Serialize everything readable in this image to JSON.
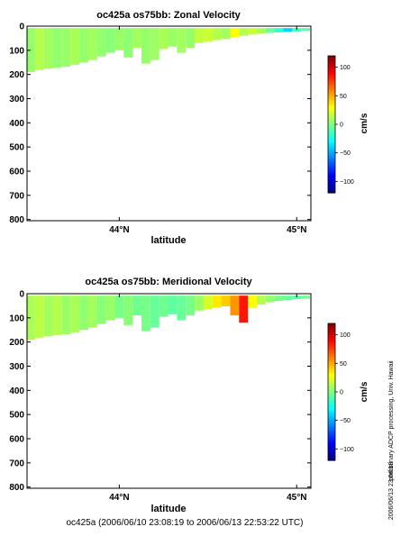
{
  "chart_data": [
    {
      "type": "heatmap",
      "title": "oc425a os75bb: Zonal Velocity",
      "xlabel": "latitude",
      "ylabel": "",
      "x_tick_labels": [
        "44°N",
        "45°N"
      ],
      "x_ticks": [
        44.0,
        45.0
      ],
      "xlim": [
        43.48,
        45.08
      ],
      "ylim": [
        805,
        0
      ],
      "y_ticks": [
        0,
        100,
        200,
        300,
        400,
        500,
        600,
        700,
        800
      ],
      "colorbar": {
        "label": "cm/s",
        "range": [
          -120,
          120
        ],
        "ticks": [
          100,
          50,
          0,
          -50,
          -100
        ],
        "tick_labels": [
          "100",
          "50",
          "0",
          "−50",
          "−100"
        ]
      },
      "columns": [
        {
          "lat": 43.5,
          "depth": 190,
          "u": 5
        },
        {
          "lat": 43.55,
          "depth": 182,
          "u": 12
        },
        {
          "lat": 43.6,
          "depth": 176,
          "u": 8
        },
        {
          "lat": 43.65,
          "depth": 172,
          "u": 4
        },
        {
          "lat": 43.7,
          "depth": 168,
          "u": 6
        },
        {
          "lat": 43.75,
          "depth": 160,
          "u": 10
        },
        {
          "lat": 43.8,
          "depth": 150,
          "u": 5
        },
        {
          "lat": 43.85,
          "depth": 140,
          "u": 8
        },
        {
          "lat": 43.9,
          "depth": 125,
          "u": 4
        },
        {
          "lat": 43.95,
          "depth": 110,
          "u": 2
        },
        {
          "lat": 44.0,
          "depth": 100,
          "u": 6
        },
        {
          "lat": 44.05,
          "depth": 130,
          "u": 3
        },
        {
          "lat": 44.1,
          "depth": 90,
          "u": 8
        },
        {
          "lat": 44.15,
          "depth": 155,
          "u": 5
        },
        {
          "lat": 44.2,
          "depth": 140,
          "u": 7
        },
        {
          "lat": 44.25,
          "depth": 95,
          "u": 10
        },
        {
          "lat": 44.3,
          "depth": 85,
          "u": 6
        },
        {
          "lat": 44.35,
          "depth": 110,
          "u": 8
        },
        {
          "lat": 44.4,
          "depth": 90,
          "u": 5
        },
        {
          "lat": 44.45,
          "depth": 70,
          "u": 15
        },
        {
          "lat": 44.5,
          "depth": 65,
          "u": 18
        },
        {
          "lat": 44.55,
          "depth": 58,
          "u": 12
        },
        {
          "lat": 44.6,
          "depth": 52,
          "u": 8
        },
        {
          "lat": 44.65,
          "depth": 45,
          "u": 30
        },
        {
          "lat": 44.7,
          "depth": 40,
          "u": 12
        },
        {
          "lat": 44.75,
          "depth": 35,
          "u": 18
        },
        {
          "lat": 44.8,
          "depth": 30,
          "u": 10
        },
        {
          "lat": 44.85,
          "depth": 28,
          "u": -5
        },
        {
          "lat": 44.9,
          "depth": 26,
          "u": -20
        },
        {
          "lat": 44.95,
          "depth": 24,
          "u": -40
        },
        {
          "lat": 45.0,
          "depth": 22,
          "u": -15
        },
        {
          "lat": 45.05,
          "depth": 20,
          "u": -10
        }
      ]
    },
    {
      "type": "heatmap",
      "title": "oc425a os75bb: Meridional Velocity",
      "xlabel": "latitude",
      "ylabel": "",
      "x_tick_labels": [
        "44°N",
        "45°N"
      ],
      "x_ticks": [
        44.0,
        45.0
      ],
      "xlim": [
        43.48,
        45.08
      ],
      "ylim": [
        805,
        0
      ],
      "y_ticks": [
        0,
        100,
        200,
        300,
        400,
        500,
        600,
        700,
        800
      ],
      "colorbar": {
        "label": "cm/s",
        "range": [
          -120,
          120
        ],
        "ticks": [
          100,
          50,
          0,
          -50,
          -100
        ],
        "tick_labels": [
          "100",
          "50",
          "0",
          "−50",
          "−100"
        ]
      },
      "columns": [
        {
          "lat": 43.5,
          "depth": 190,
          "v": 10
        },
        {
          "lat": 43.55,
          "depth": 182,
          "v": 14
        },
        {
          "lat": 43.6,
          "depth": 176,
          "v": 8
        },
        {
          "lat": 43.65,
          "depth": 172,
          "v": 12
        },
        {
          "lat": 43.7,
          "depth": 168,
          "v": 6
        },
        {
          "lat": 43.75,
          "depth": 160,
          "v": 10
        },
        {
          "lat": 43.8,
          "depth": 150,
          "v": 4
        },
        {
          "lat": 43.85,
          "depth": 140,
          "v": 8
        },
        {
          "lat": 43.9,
          "depth": 125,
          "v": 2
        },
        {
          "lat": 43.95,
          "depth": 110,
          "v": 6
        },
        {
          "lat": 44.0,
          "depth": 100,
          "v": -2
        },
        {
          "lat": 44.05,
          "depth": 130,
          "v": 2
        },
        {
          "lat": 44.1,
          "depth": 90,
          "v": -4
        },
        {
          "lat": 44.15,
          "depth": 155,
          "v": -2
        },
        {
          "lat": 44.2,
          "depth": 140,
          "v": -6
        },
        {
          "lat": 44.25,
          "depth": 95,
          "v": -4
        },
        {
          "lat": 44.3,
          "depth": 85,
          "v": -8
        },
        {
          "lat": 44.35,
          "depth": 110,
          "v": -6
        },
        {
          "lat": 44.4,
          "depth": 90,
          "v": -2
        },
        {
          "lat": 44.45,
          "depth": 70,
          "v": 6
        },
        {
          "lat": 44.5,
          "depth": 65,
          "v": 20
        },
        {
          "lat": 44.55,
          "depth": 58,
          "v": 35
        },
        {
          "lat": 44.6,
          "depth": 52,
          "v": 42
        },
        {
          "lat": 44.65,
          "depth": 90,
          "v": 55
        },
        {
          "lat": 44.7,
          "depth": 120,
          "v": 85
        },
        {
          "lat": 44.75,
          "depth": 60,
          "v": 30
        },
        {
          "lat": 44.8,
          "depth": 45,
          "v": 12
        },
        {
          "lat": 44.85,
          "depth": 35,
          "v": 4
        },
        {
          "lat": 44.9,
          "depth": 30,
          "v": -2
        },
        {
          "lat": 44.95,
          "depth": 26,
          "v": -6
        },
        {
          "lat": 45.0,
          "depth": 22,
          "v": -10
        },
        {
          "lat": 45.05,
          "depth": 20,
          "v": -4
        }
      ]
    }
  ],
  "side_text": "preliminary ADCP processing,  Univ. Hawaii",
  "timestamp": "2006/06/13 23:04:18",
  "footer": "oc425a (2006/06/10 23:08:19 to 2006/06/13 22:53:22 UTC)"
}
